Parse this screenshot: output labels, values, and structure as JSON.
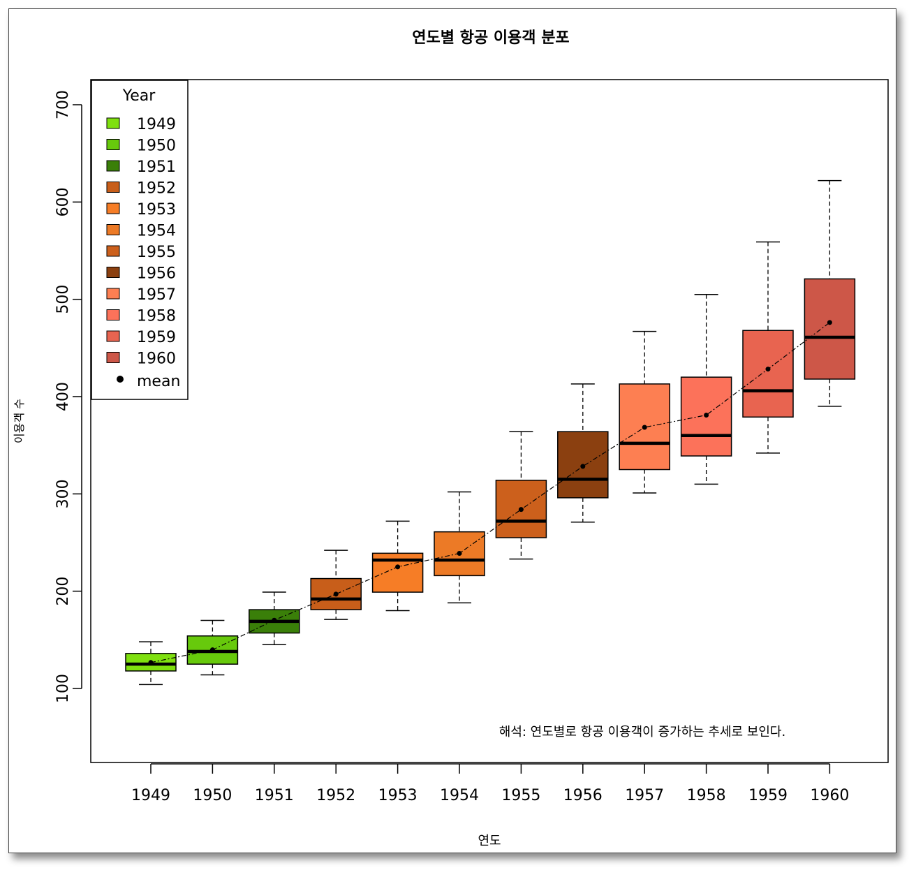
{
  "chart_data": {
    "type": "box",
    "title": "연도별 항공 이용객 분포",
    "xlabel": "연도",
    "ylabel": "이용객 수",
    "ylim": [
      30,
      730
    ],
    "yticks": [
      100,
      200,
      300,
      400,
      500,
      600,
      700
    ],
    "categories": [
      "1949",
      "1950",
      "1951",
      "1952",
      "1953",
      "1954",
      "1955",
      "1956",
      "1957",
      "1958",
      "1959",
      "1960"
    ],
    "colors": [
      "#7fe00f",
      "#67c90c",
      "#3a7f09",
      "#c85e1a",
      "#f67d26",
      "#ec7a26",
      "#cc601c",
      "#8b4010",
      "#fd7f52",
      "#fc725a",
      "#e86450",
      "#cd5748"
    ],
    "boxes": [
      {
        "min": 104,
        "q1": 118,
        "median": 125,
        "q3": 136,
        "max": 148,
        "mean": 126.7
      },
      {
        "min": 114,
        "q1": 125,
        "median": 138,
        "q3": 154,
        "max": 170,
        "mean": 139.7
      },
      {
        "min": 145,
        "q1": 157,
        "median": 169,
        "q3": 181,
        "max": 199,
        "mean": 170.2
      },
      {
        "min": 171,
        "q1": 181,
        "median": 192,
        "q3": 213,
        "max": 242,
        "mean": 197.0
      },
      {
        "min": 180,
        "q1": 199,
        "median": 232,
        "q3": 239,
        "max": 272,
        "mean": 225.0
      },
      {
        "min": 188,
        "q1": 216,
        "median": 232,
        "q3": 261,
        "max": 302,
        "mean": 238.9
      },
      {
        "min": 233,
        "q1": 255,
        "median": 272,
        "q3": 314,
        "max": 364,
        "mean": 284.0
      },
      {
        "min": 271,
        "q1": 296,
        "median": 315,
        "q3": 364,
        "max": 413,
        "mean": 328.3
      },
      {
        "min": 301,
        "q1": 325,
        "median": 352,
        "q3": 413,
        "max": 467,
        "mean": 368.4
      },
      {
        "min": 310,
        "q1": 339,
        "median": 360,
        "q3": 420,
        "max": 505,
        "mean": 381.0
      },
      {
        "min": 342,
        "q1": 379,
        "median": 406,
        "q3": 468,
        "max": 559,
        "mean": 428.3
      },
      {
        "min": 390,
        "q1": 418,
        "median": 461,
        "q3": 521,
        "max": 622,
        "mean": 476.2
      }
    ],
    "legend": {
      "title": "Year",
      "position": "top-left",
      "items": [
        "1949",
        "1950",
        "1951",
        "1952",
        "1953",
        "1954",
        "1955",
        "1956",
        "1957",
        "1958",
        "1959",
        "1960"
      ],
      "mean_label": "mean"
    },
    "annotation": "해석: 연도별로 항공 이용객이 증가하는 추세로 보인다."
  }
}
